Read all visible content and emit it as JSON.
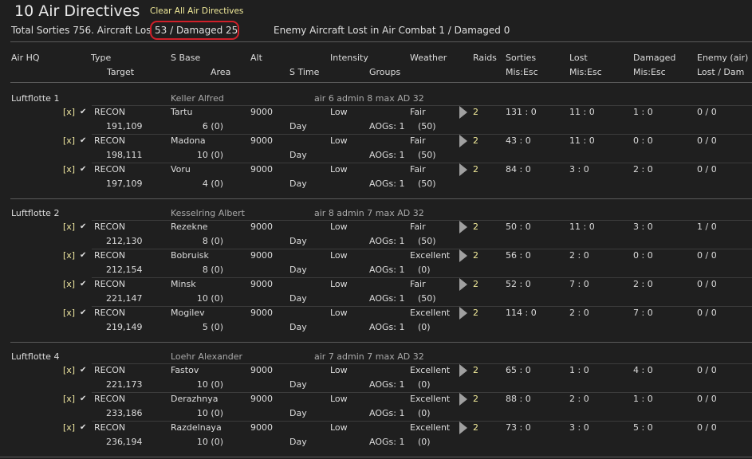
{
  "title": "10 Air Directives",
  "clear_label": "Clear All Air Directives",
  "summary_left": "Total Sorties 756. Aircraft Los",
  "summary_highlight": "53 / Damaged 25",
  "summary_enemy": "Enemy Aircraft Lost in Air Combat 1 / Damaged 0",
  "headers": {
    "airhq": "Air HQ",
    "type": "Type",
    "sbase": "S Base",
    "alt": "Alt",
    "intensity": "Intensity",
    "weather": "Weather",
    "raids": "Raids",
    "sorties": "Sorties",
    "lost": "Lost",
    "damaged": "Damaged",
    "enemy": "Enemy (air)",
    "target": "Target",
    "area": "Area",
    "stime": "S Time",
    "groups": "Groups",
    "sorties2": "Mis:Esc",
    "lost2": "Mis:Esc",
    "damaged2": "Mis:Esc",
    "enemy2": "Lost / Dam"
  },
  "groups": [
    {
      "name": "Luftflotte 1",
      "commander": "Keller Alfred",
      "stats": "air 6   admin 8   max AD 32",
      "rows": [
        {
          "x": "[x]",
          "type": "RECON",
          "target": "191,109",
          "sbase": "Tartu",
          "area": "6 (0)",
          "alt": "9000",
          "stime": "Day",
          "intensity": "Low",
          "groups": "AOGs: 1",
          "weather": "Fair",
          "wval": "(50)",
          "raids": "2",
          "sorties": "131 : 0",
          "lost": "11 : 0",
          "damaged": "1 : 0",
          "enemy": "0 / 0"
        },
        {
          "x": "[x]",
          "type": "RECON",
          "target": "198,111",
          "sbase": "Madona",
          "area": "10 (0)",
          "alt": "9000",
          "stime": "Day",
          "intensity": "Low",
          "groups": "AOGs: 1",
          "weather": "Fair",
          "wval": "(50)",
          "raids": "2",
          "sorties": "43 : 0",
          "lost": "11 : 0",
          "damaged": "0 : 0",
          "enemy": "0 / 0"
        },
        {
          "x": "[x]",
          "type": "RECON",
          "target": "197,109",
          "sbase": "Voru",
          "area": "4 (0)",
          "alt": "9000",
          "stime": "Day",
          "intensity": "Low",
          "groups": "AOGs: 1",
          "weather": "Fair",
          "wval": "(50)",
          "raids": "2",
          "sorties": "84 : 0",
          "lost": "3 : 0",
          "damaged": "2 : 0",
          "enemy": "0 / 0"
        }
      ]
    },
    {
      "name": "Luftflotte 2",
      "commander": "Kesselring Albert",
      "stats": "air 8   admin 7   max AD 32",
      "rows": [
        {
          "x": "[x]",
          "type": "RECON",
          "target": "212,130",
          "sbase": "Rezekne",
          "area": "8 (0)",
          "alt": "9000",
          "stime": "Day",
          "intensity": "Low",
          "groups": "AOGs: 1",
          "weather": "Fair",
          "wval": "(50)",
          "raids": "2",
          "sorties": "50 : 0",
          "lost": "11 : 0",
          "damaged": "3 : 0",
          "enemy": "1 / 0"
        },
        {
          "x": "[x]",
          "type": "RECON",
          "target": "212,154",
          "sbase": "Bobruisk",
          "area": "8 (0)",
          "alt": "9000",
          "stime": "Day",
          "intensity": "Low",
          "groups": "AOGs: 1",
          "weather": "Excellent",
          "wval": "(0)",
          "raids": "2",
          "sorties": "56 : 0",
          "lost": "2 : 0",
          "damaged": "0 : 0",
          "enemy": "0 / 0"
        },
        {
          "x": "[x]",
          "type": "RECON",
          "target": "221,147",
          "sbase": "Minsk",
          "area": "10 (0)",
          "alt": "9000",
          "stime": "Day",
          "intensity": "Low",
          "groups": "AOGs: 1",
          "weather": "Fair",
          "wval": "(50)",
          "raids": "2",
          "sorties": "52 : 0",
          "lost": "7 : 0",
          "damaged": "2 : 0",
          "enemy": "0 / 0"
        },
        {
          "x": "[x]",
          "type": "RECON",
          "target": "219,149",
          "sbase": "Mogilev",
          "area": "5 (0)",
          "alt": "9000",
          "stime": "Day",
          "intensity": "Low",
          "groups": "AOGs: 1",
          "weather": "Excellent",
          "wval": "(0)",
          "raids": "2",
          "sorties": "114 : 0",
          "lost": "2 : 0",
          "damaged": "7 : 0",
          "enemy": "0 / 0"
        }
      ]
    },
    {
      "name": "Luftflotte 4",
      "commander": "Loehr Alexander",
      "stats": "air 7   admin 7   max AD 32",
      "rows": [
        {
          "x": "[x]",
          "type": "RECON",
          "target": "221,173",
          "sbase": "Fastov",
          "area": "10 (0)",
          "alt": "9000",
          "stime": "Day",
          "intensity": "Low",
          "groups": "AOGs: 1",
          "weather": "Excellent",
          "wval": "(0)",
          "raids": "2",
          "sorties": "65 : 0",
          "lost": "1 : 0",
          "damaged": "4 : 0",
          "enemy": "0 / 0"
        },
        {
          "x": "[x]",
          "type": "RECON",
          "target": "233,186",
          "sbase": "Derazhnya",
          "area": "10 (0)",
          "alt": "9000",
          "stime": "Day",
          "intensity": "Low",
          "groups": "AOGs: 1",
          "weather": "Excellent",
          "wval": "(0)",
          "raids": "2",
          "sorties": "88 : 0",
          "lost": "2 : 0",
          "damaged": "1 : 0",
          "enemy": "0 / 0"
        },
        {
          "x": "[x]",
          "type": "RECON",
          "target": "236,194",
          "sbase": "Razdelnaya",
          "area": "10 (0)",
          "alt": "9000",
          "stime": "Day",
          "intensity": "Low",
          "groups": "AOGs: 1",
          "weather": "Excellent",
          "wval": "(0)",
          "raids": "2",
          "sorties": "73 : 0",
          "lost": "3 : 0",
          "damaged": "5 : 0",
          "enemy": "0 / 0"
        }
      ]
    }
  ]
}
